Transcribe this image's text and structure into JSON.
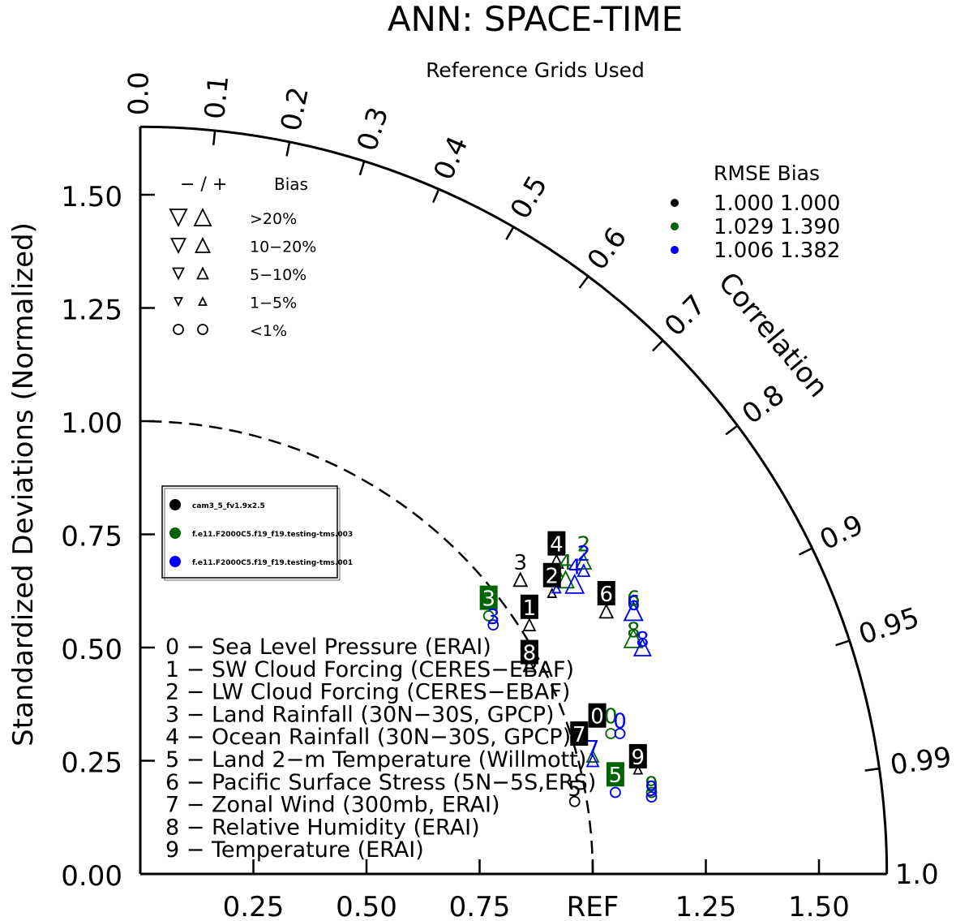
{
  "chart_data": {
    "type": "scatter",
    "title": "ANN: SPACE-TIME",
    "subtitle": "Reference Grids Used",
    "ylabel": "Standardized Deviations (Normalized)",
    "arc_label": "Correlation",
    "ref_label": "REF",
    "std_range": [
      0,
      1.65
    ],
    "y_ticks": [
      "0.00",
      "0.25",
      "0.50",
      "0.75",
      "1.00",
      "1.25",
      "1.50"
    ],
    "x_ticks": [
      "0.25",
      "0.50",
      "0.75",
      "REF",
      "1.25",
      "1.50"
    ],
    "correlation_ticks": [
      "0.0",
      "0.1",
      "0.2",
      "0.3",
      "0.4",
      "0.5",
      "0.6",
      "0.7",
      "0.8",
      "0.9",
      "0.95",
      "0.99",
      "1.0"
    ],
    "bias_legend": {
      "header_sign": "− / +",
      "header_bias": "Bias",
      "rows": [
        ">20%",
        "10−20%",
        "5−10%",
        "1−5%",
        "<1%"
      ]
    },
    "rmse_table": {
      "header": "RMSE  Bias",
      "rows": [
        {
          "rmse": "1.000",
          "bias": "1.000",
          "color": "#000000"
        },
        {
          "rmse": "1.029",
          "bias": "1.390",
          "color": "#006400"
        },
        {
          "rmse": "1.006",
          "bias": "1.382",
          "color": "#0000ff"
        }
      ]
    },
    "series": [
      {
        "name": "cam3_5_fv1.9x2.5",
        "color": "#000000"
      },
      {
        "name": "f.e11.F2000C5.f19_f19.testing-tms.003",
        "color": "#006400"
      },
      {
        "name": "f.e11.F2000C5.f19_f19.testing-tms.001",
        "color": "#0000ff"
      }
    ],
    "variables": [
      "0 − Sea Level Pressure (ERAI)",
      "1 − SW Cloud Forcing (CERES−EBAF)",
      "2 − LW Cloud Forcing (CERES−EBAF)",
      "3 − Land Rainfall (30N−30S, GPCP)",
      "4 − Ocean Rainfall (30N−30S, GPCP)",
      "5 − Land 2−m Temperature (Willmott)",
      "6 − Pacific Surface Stress (5N−5S,ERS)",
      "7 − Zonal Wind (300mb, ERAI)",
      "8 − Relative Humidity (ERAI)",
      "9 − Temperature (ERAI)"
    ],
    "points": [
      {
        "series": 0,
        "var": "0",
        "x": 1.01,
        "y": 0.35,
        "box": true
      },
      {
        "series": 0,
        "var": "1",
        "x": 0.86,
        "y": 0.59,
        "box": true
      },
      {
        "series": 0,
        "var": "2",
        "x": 0.91,
        "y": 0.66,
        "box": true
      },
      {
        "series": 0,
        "var": "3",
        "x": 0.84,
        "y": 0.69,
        "box": false
      },
      {
        "series": 0,
        "var": "4",
        "x": 0.92,
        "y": 0.73,
        "box": true
      },
      {
        "series": 0,
        "var": "5",
        "x": 0.96,
        "y": 0.19,
        "box": false
      },
      {
        "series": 0,
        "var": "6",
        "x": 1.03,
        "y": 0.62,
        "box": true
      },
      {
        "series": 0,
        "var": "7",
        "x": 0.97,
        "y": 0.31,
        "box": true
      },
      {
        "series": 0,
        "var": "8",
        "x": 0.86,
        "y": 0.49,
        "box": true
      },
      {
        "series": 0,
        "var": "9",
        "x": 1.1,
        "y": 0.26,
        "box": true
      },
      {
        "series": 1,
        "var": "0",
        "x": 1.04,
        "y": 0.35,
        "box": false
      },
      {
        "series": 1,
        "var": "2",
        "x": 0.98,
        "y": 0.73,
        "box": false
      },
      {
        "series": 1,
        "var": "3",
        "x": 0.77,
        "y": 0.61,
        "box": true
      },
      {
        "series": 1,
        "var": "4",
        "x": 0.94,
        "y": 0.69,
        "box": false
      },
      {
        "series": 1,
        "var": "5",
        "x": 1.05,
        "y": 0.22,
        "box": true
      },
      {
        "series": 1,
        "var": "6",
        "x": 1.09,
        "y": 0.61,
        "box": false
      },
      {
        "series": 1,
        "var": "8",
        "x": 1.09,
        "y": 0.54,
        "box": false
      },
      {
        "series": 1,
        "var": "9",
        "x": 1.13,
        "y": 0.2,
        "box": false
      },
      {
        "series": 2,
        "var": "0",
        "x": 1.06,
        "y": 0.34,
        "box": false
      },
      {
        "series": 2,
        "var": "2",
        "x": 0.98,
        "y": 0.71,
        "box": false
      },
      {
        "series": 2,
        "var": "3",
        "x": 0.78,
        "y": 0.57,
        "box": false
      },
      {
        "series": 2,
        "var": "4",
        "x": 0.96,
        "y": 0.68,
        "box": false
      },
      {
        "series": 2,
        "var": "6",
        "x": 1.09,
        "y": 0.6,
        "box": false
      },
      {
        "series": 2,
        "var": "7",
        "x": 1.0,
        "y": 0.28,
        "box": false
      },
      {
        "series": 2,
        "var": "8",
        "x": 1.11,
        "y": 0.52,
        "box": false
      },
      {
        "series": 2,
        "var": "9",
        "x": 1.13,
        "y": 0.19,
        "box": false
      }
    ],
    "markers": [
      {
        "series": 0,
        "shape": "up",
        "x": 1.03,
        "y": 0.58,
        "size": 16
      },
      {
        "series": 0,
        "shape": "up",
        "x": 0.84,
        "y": 0.65,
        "size": 16
      },
      {
        "series": 0,
        "shape": "up",
        "x": 0.92,
        "y": 0.69,
        "size": 16
      },
      {
        "series": 0,
        "shape": "up",
        "x": 0.86,
        "y": 0.55,
        "size": 14
      },
      {
        "series": 0,
        "shape": "up",
        "x": 0.86,
        "y": 0.46,
        "size": 14
      },
      {
        "series": 0,
        "shape": "up",
        "x": 0.91,
        "y": 0.62,
        "size": 10
      },
      {
        "series": 0,
        "shape": "up",
        "x": 1.1,
        "y": 0.23,
        "size": 10
      },
      {
        "series": 0,
        "shape": "circle",
        "x": 0.96,
        "y": 0.16,
        "size": 12
      },
      {
        "series": 1,
        "shape": "up",
        "x": 1.09,
        "y": 0.58,
        "size": 22
      },
      {
        "series": 1,
        "shape": "up",
        "x": 1.09,
        "y": 0.52,
        "size": 22
      },
      {
        "series": 1,
        "shape": "up",
        "x": 0.94,
        "y": 0.65,
        "size": 20
      },
      {
        "series": 1,
        "shape": "up",
        "x": 0.98,
        "y": 0.69,
        "size": 18
      },
      {
        "series": 1,
        "shape": "up",
        "x": 0.92,
        "y": 0.67,
        "size": 14
      },
      {
        "series": 1,
        "shape": "up",
        "x": 1.0,
        "y": 0.26,
        "size": 14
      },
      {
        "series": 1,
        "shape": "circle",
        "x": 1.04,
        "y": 0.31,
        "size": 12
      },
      {
        "series": 1,
        "shape": "circle",
        "x": 0.77,
        "y": 0.57,
        "size": 12
      },
      {
        "series": 1,
        "shape": "circle",
        "x": 1.13,
        "y": 0.18,
        "size": 12
      },
      {
        "series": 2,
        "shape": "up",
        "x": 0.96,
        "y": 0.64,
        "size": 22
      },
      {
        "series": 2,
        "shape": "up",
        "x": 1.09,
        "y": 0.58,
        "size": 22
      },
      {
        "series": 2,
        "shape": "up",
        "x": 1.11,
        "y": 0.5,
        "size": 20
      },
      {
        "series": 2,
        "shape": "up",
        "x": 0.98,
        "y": 0.67,
        "size": 14
      },
      {
        "series": 2,
        "shape": "up",
        "x": 1.0,
        "y": 0.25,
        "size": 14
      },
      {
        "series": 2,
        "shape": "up",
        "x": 0.92,
        "y": 0.63,
        "size": 10
      },
      {
        "series": 2,
        "shape": "circle",
        "x": 0.78,
        "y": 0.55,
        "size": 12
      },
      {
        "series": 2,
        "shape": "circle",
        "x": 1.05,
        "y": 0.18,
        "size": 12
      },
      {
        "series": 2,
        "shape": "circle",
        "x": 1.13,
        "y": 0.17,
        "size": 12
      },
      {
        "series": 2,
        "shape": "circle",
        "x": 1.06,
        "y": 0.31,
        "size": 12
      }
    ]
  }
}
